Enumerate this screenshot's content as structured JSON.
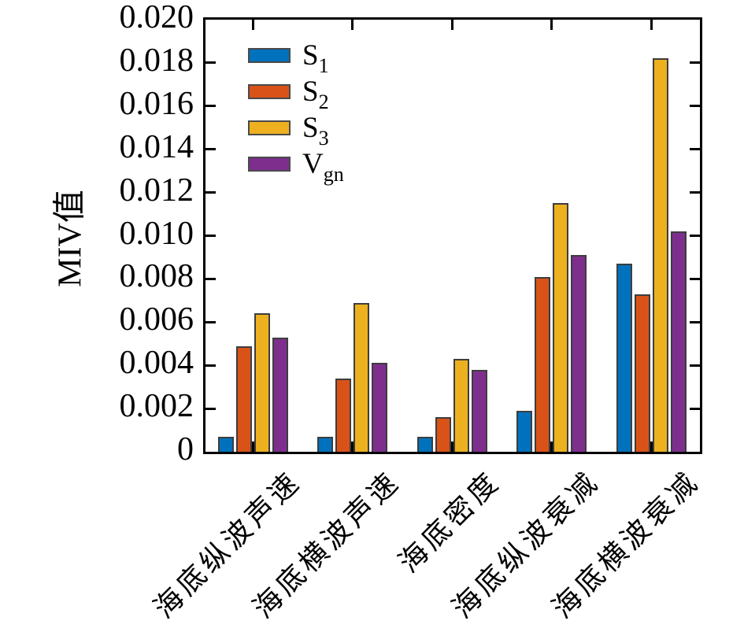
{
  "figure": {
    "background": "#ffffff",
    "axis_color": "#000000",
    "bar_edge_color": "#3d3d3d"
  },
  "chart_data": {
    "type": "bar",
    "title": "",
    "xlabel": "",
    "ylabel": "MIV值",
    "categories": [
      "海底纵波声速",
      "海底横波声速",
      "海底密度",
      "海底纵波衰减",
      "海底横波衰减"
    ],
    "series": [
      {
        "name": "S1",
        "label_base": "S",
        "label_sub": "1",
        "color": "#0072BD",
        "values": [
          0.0007,
          0.0007,
          0.0007,
          0.0019,
          0.0087
        ]
      },
      {
        "name": "S2",
        "label_base": "S",
        "label_sub": "2",
        "color": "#D95319",
        "values": [
          0.0049,
          0.0034,
          0.0016,
          0.0081,
          0.0073
        ]
      },
      {
        "name": "S3",
        "label_base": "S",
        "label_sub": "3",
        "color": "#EDB120",
        "values": [
          0.0064,
          0.0069,
          0.0043,
          0.0115,
          0.0182
        ]
      },
      {
        "name": "Vgn",
        "label_base": "V",
        "label_sub": "gn",
        "color": "#7E2F8E",
        "values": [
          0.0053,
          0.0041,
          0.0038,
          0.0091,
          0.0102
        ]
      }
    ],
    "ylim": [
      0,
      0.02
    ],
    "ytick_step": 0.002,
    "ytick_labels": [
      "0",
      "0.002",
      "0.004",
      "0.006",
      "0.008",
      "0.010",
      "0.012",
      "0.014",
      "0.016",
      "0.018",
      "0.020"
    ],
    "grid": false,
    "legend_position": "upper-left-inside"
  }
}
